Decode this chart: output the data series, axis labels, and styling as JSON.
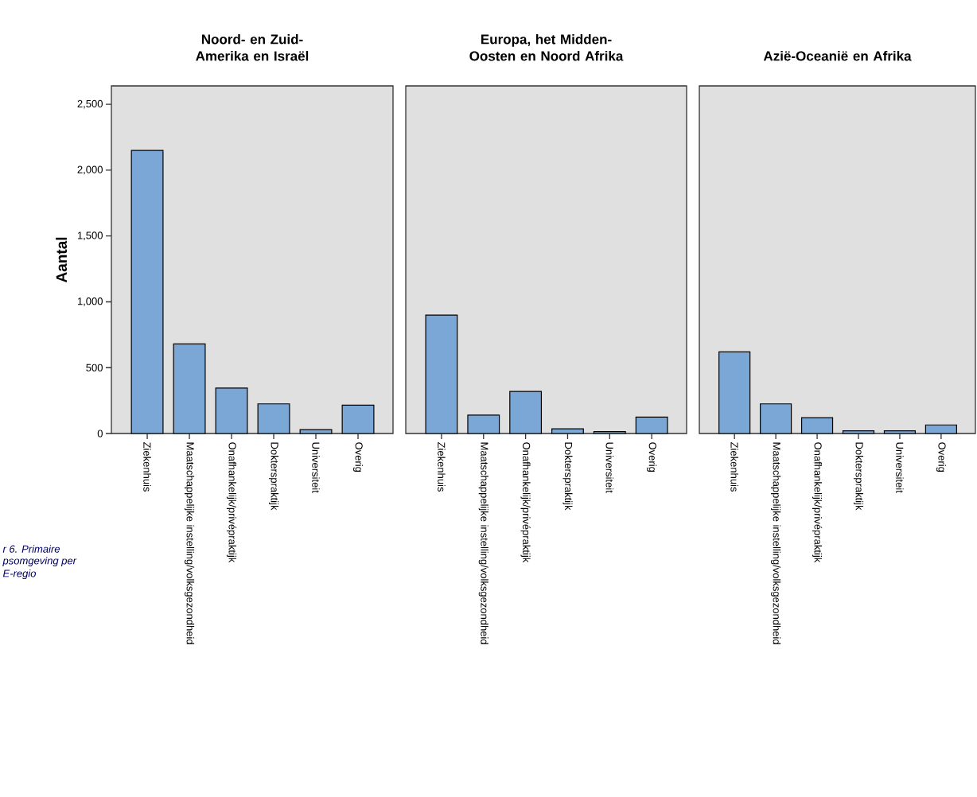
{
  "chart_data": [
    {
      "type": "bar",
      "title": "Noord- en Zuid-Amerika en Israël",
      "ylabel": "Aantal",
      "categories": [
        "Ziekenhuis",
        "Maatschappelijke instelling/volksgezondheid",
        "Onafhankelijk/privépraktijk",
        "Dokterspraktijk",
        "Universiteit",
        "Overig"
      ],
      "values": [
        2150,
        680,
        345,
        225,
        30,
        215
      ],
      "color": "#7ba7d7",
      "ylim": [
        0,
        2640
      ],
      "yticks": [
        0,
        500,
        {
          "value": 1000,
          "label": "1,000"
        },
        {
          "value": 1500,
          "label": "1,500"
        },
        {
          "value": 2000,
          "label": "2,000"
        },
        {
          "value": 2500,
          "label": "2,500"
        }
      ],
      "annotations": [
        "r 6. Primaire",
        "psomgeving per",
        "E-regio"
      ]
    },
    {
      "type": "bar",
      "title": "Europa, het Midden-Oosten en Noord Afrika",
      "categories": [
        "Ziekenhuis",
        "Maatschappelijke instelling/volksgezondheid",
        "Onafhankelijk/privépraktijk",
        "Dokterspraktijk",
        "Universiteit",
        "Overig"
      ],
      "values": [
        900,
        140,
        320,
        35,
        15,
        125
      ],
      "color": "#7ba7d7",
      "ylim": [
        0,
        2640
      ],
      "tick_labels": "x"
    },
    {
      "type": "bar",
      "title": "Azië-Oceanië en Afrika",
      "categories": [
        "Ziekenhuis",
        "Maatschappelijke instelling/volksgezondheid",
        "Onafhankelijk/privépraktijk",
        "Dokterspraktijk",
        "Universiteit",
        "Overig"
      ],
      "values": [
        620,
        225,
        120,
        20,
        20,
        65
      ],
      "color": "#7ba7d7",
      "ylim": [
        0,
        2640
      ],
      "tick_labels": "x"
    }
  ]
}
